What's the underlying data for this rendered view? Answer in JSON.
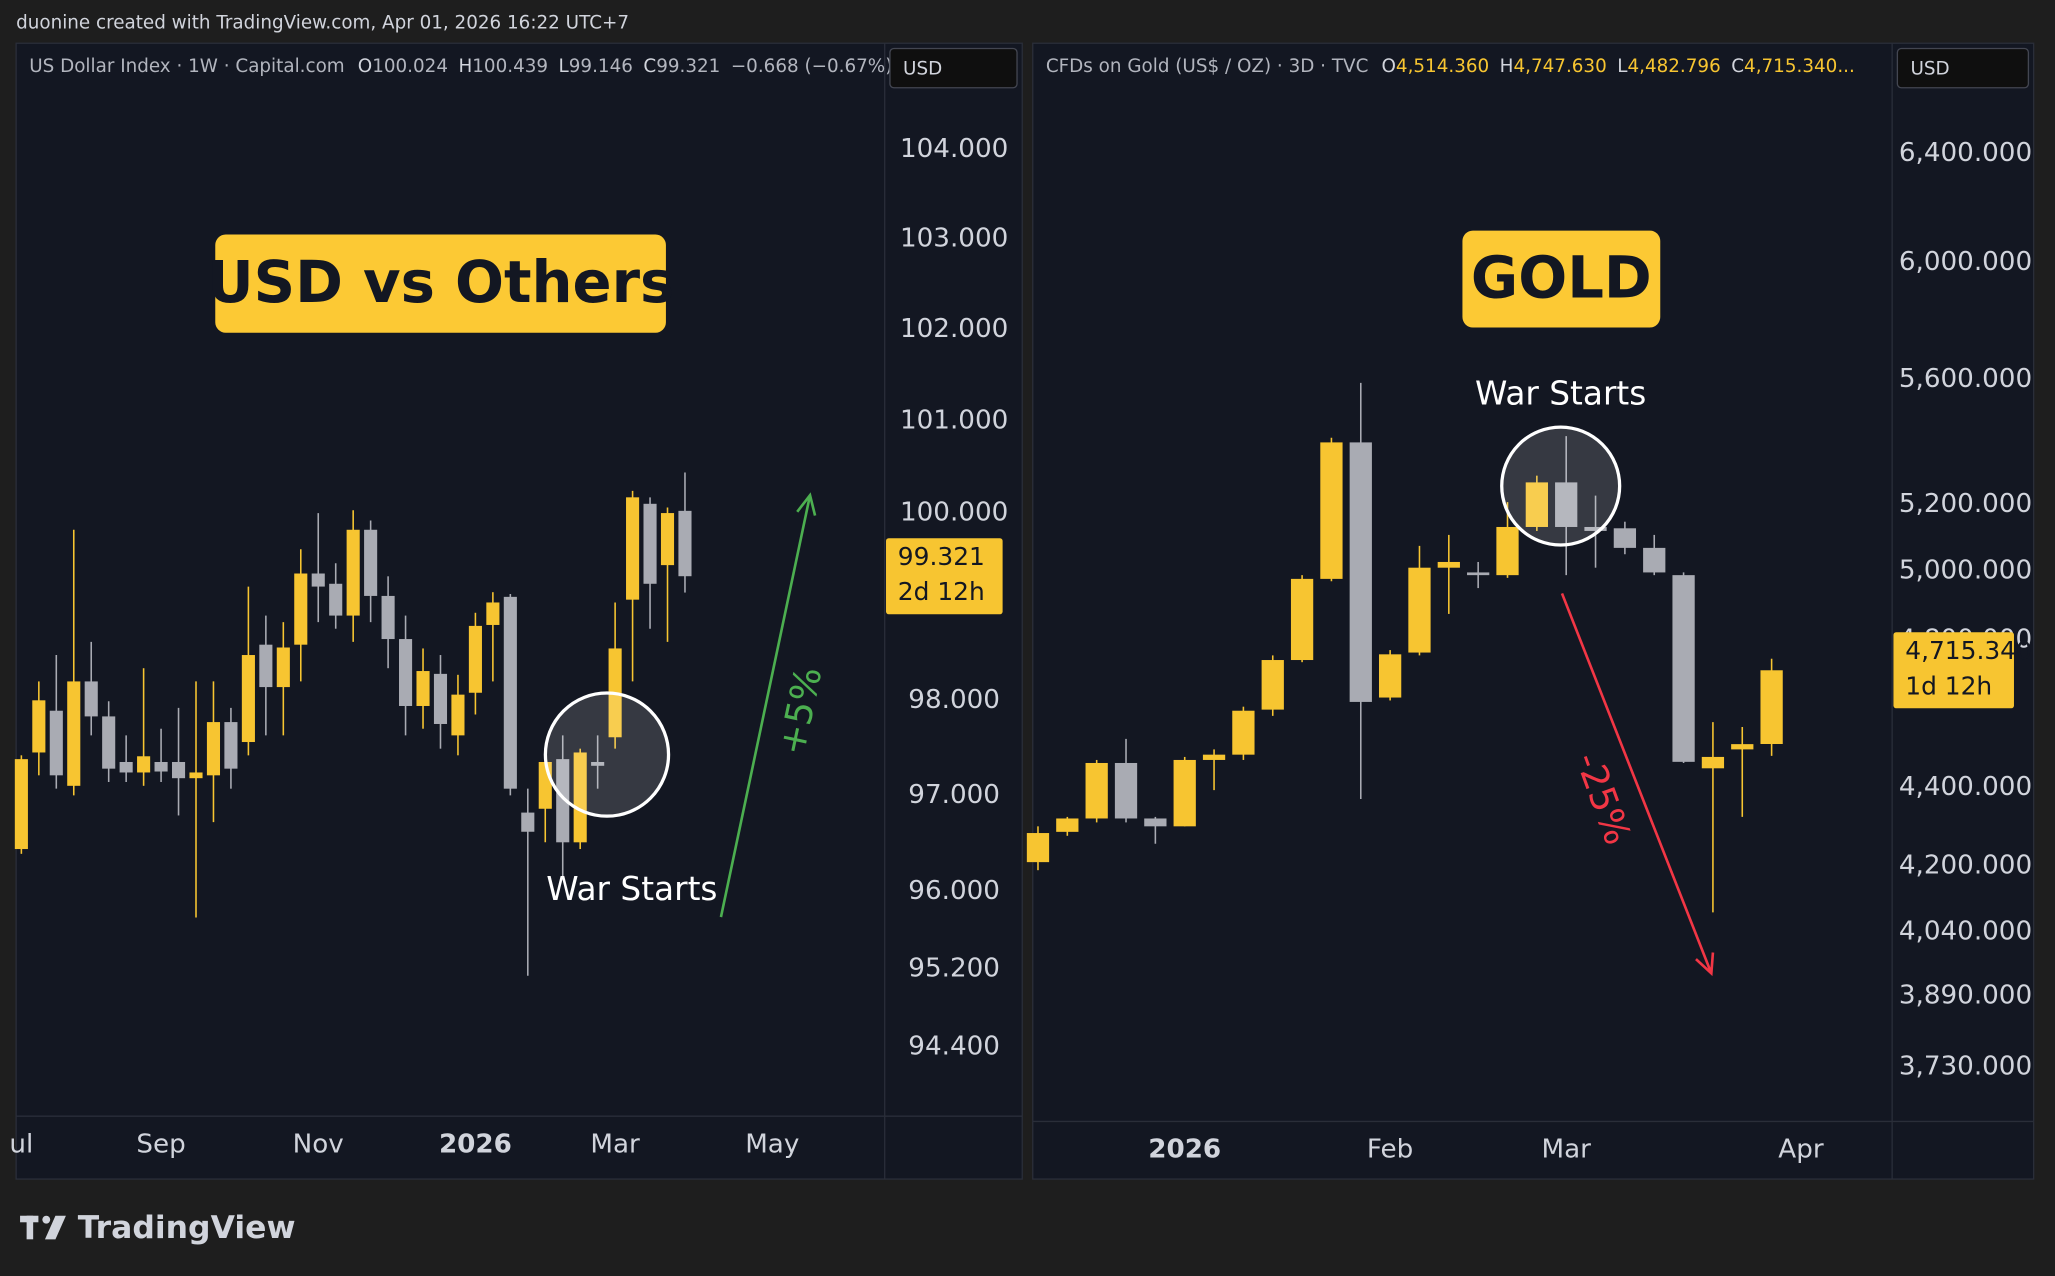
{
  "attribution": "duonine created with TradingView.com, Apr 01, 2026 16:22 UTC+7",
  "logo": "TradingView",
  "chart_data": [
    {
      "type": "candlestick",
      "symbol": "US Dollar Index · 1W · Capital.com",
      "ohlc": [
        {
          "key": "O",
          "value": "100.024"
        },
        {
          "key": "H",
          "value": "100.439"
        },
        {
          "key": "L",
          "value": "99.146"
        },
        {
          "key": "C",
          "value": "99.321"
        }
      ],
      "change": "−0.668 (−0.67%)",
      "ohlc_color": "#b2b5be",
      "currency": "USD",
      "title": "USD vs Others",
      "annotation": "War Starts",
      "move_label": "+5%",
      "move_color": "#4caf50",
      "last_label": "99.321",
      "countdown": "2d 12h",
      "log_scale": true,
      "up_color": "#f7c531",
      "down_color": "#a9abb3",
      "categories": [
        "ul",
        null,
        null,
        null,
        null,
        null,
        null,
        null,
        "Sep",
        null,
        null,
        null,
        null,
        null,
        null,
        null,
        null,
        "Nov",
        null,
        null,
        null,
        null,
        null,
        null,
        null,
        null,
        "2026",
        null,
        null,
        null,
        null,
        null,
        null,
        null,
        "Mar",
        null,
        null,
        null,
        null,
        null,
        null,
        null,
        null,
        "May",
        null,
        null,
        null,
        null,
        null,
        null
      ],
      "open": [
        96.44,
        97.45,
        97.89,
        97.1,
        98.2,
        97.83,
        97.35,
        97.24,
        97.35,
        97.35,
        97.18,
        97.21,
        97.77,
        97.56,
        98.59,
        98.14,
        98.59,
        99.35,
        99.24,
        98.9,
        99.82,
        99.11,
        98.65,
        97.94,
        98.28,
        97.63,
        98.08,
        98.8,
        99.1,
        96.82,
        96.86,
        97.38,
        96.51,
        97.35,
        97.61,
        99.07,
        100.1,
        99.44,
        100.024,
        null,
        null,
        null,
        null,
        null,
        null,
        null,
        null,
        null,
        null,
        null
      ],
      "high": [
        97.42,
        98.2,
        98.48,
        99.82,
        98.62,
        97.99,
        97.63,
        98.34,
        97.7,
        97.92,
        98.2,
        98.2,
        97.92,
        99.21,
        98.9,
        98.83,
        99.61,
        100.0,
        99.46,
        100.03,
        99.92,
        99.32,
        98.9,
        98.55,
        98.48,
        98.27,
        98.93,
        99.15,
        99.13,
        97.07,
        97.49,
        97.63,
        97.49,
        97.63,
        99.04,
        100.24,
        100.17,
        100.06,
        100.439,
        null,
        null,
        null,
        null,
        null,
        null,
        null,
        null,
        null,
        null,
        null
      ],
      "low": [
        96.39,
        97.21,
        97.07,
        97.0,
        97.63,
        97.14,
        97.14,
        97.1,
        97.14,
        96.79,
        95.73,
        96.72,
        97.07,
        97.42,
        97.63,
        97.63,
        98.2,
        98.83,
        98.76,
        98.62,
        98.83,
        98.34,
        97.63,
        97.7,
        97.49,
        97.42,
        97.85,
        98.2,
        97.0,
        95.13,
        96.51,
        96.16,
        96.44,
        97.07,
        97.49,
        98.2,
        98.76,
        98.62,
        99.146,
        null,
        null,
        null,
        null,
        null,
        null,
        null,
        null,
        null,
        null,
        null
      ],
      "close": [
        97.38,
        98.0,
        97.21,
        98.2,
        97.83,
        97.28,
        97.24,
        97.41,
        97.25,
        97.18,
        97.24,
        97.77,
        97.28,
        98.48,
        98.14,
        98.56,
        99.35,
        99.21,
        98.9,
        99.82,
        99.11,
        98.65,
        97.94,
        98.31,
        97.75,
        98.06,
        98.79,
        99.04,
        97.07,
        96.62,
        97.35,
        96.51,
        97.45,
        97.31,
        98.55,
        100.17,
        99.24,
        100.0,
        99.321,
        null,
        null,
        null,
        null,
        null,
        null,
        null,
        null,
        null,
        null,
        null
      ],
      "ylim": [
        93.7,
        105.2
      ],
      "yticks": [
        {
          "value": 104,
          "label": "104.000"
        },
        {
          "value": 103,
          "label": "103.000"
        },
        {
          "value": 102,
          "label": "102.000"
        },
        {
          "value": 101,
          "label": "101.000"
        },
        {
          "value": 100,
          "label": "100.000"
        },
        {
          "value": 98,
          "label": "98.000"
        },
        {
          "value": 97,
          "label": "97.000"
        },
        {
          "value": 96,
          "label": "96.000"
        },
        {
          "value": 95.2,
          "label": "95.200"
        },
        {
          "value": 94.4,
          "label": "94.400"
        }
      ]
    },
    {
      "type": "candlestick",
      "symbol": "CFDs on Gold (US$ / OZ) · 3D · TVC",
      "ohlc": [
        {
          "key": "O",
          "value": "4,514.360"
        },
        {
          "key": "H",
          "value": "4,747.630"
        },
        {
          "key": "L",
          "value": "4,482.796"
        },
        {
          "key": "C",
          "value": "4,715.340..."
        }
      ],
      "ohlc_color": "#f7c531",
      "currency": "USD",
      "title": "GOLD",
      "annotation": "War Starts",
      "move_label": "-25%",
      "move_color": "#f23645",
      "last_label": "4,715.340",
      "countdown": "1d 12h",
      "log_scale": true,
      "up_color": "#f7c531",
      "down_color": "#a9abb3",
      "categories": [
        null,
        null,
        null,
        null,
        null,
        "2026",
        null,
        null,
        null,
        null,
        null,
        null,
        "Feb",
        null,
        null,
        null,
        null,
        null,
        "Mar",
        null,
        null,
        null,
        null,
        null,
        null,
        null,
        "Apr",
        null,
        null
      ],
      "open": [
        4210,
        4286,
        4320,
        4464,
        4320,
        4300,
        4472,
        4486,
        4607,
        4744,
        4977,
        5395,
        4640,
        4765,
        5010,
        4996,
        4988,
        5132,
        5269,
        5132,
        5128,
        5069,
        4988,
        4450,
        4500,
        4514.36,
        null,
        null,
        null
      ],
      "high": [
        4300,
        4324,
        4472,
        4528,
        4324,
        4480,
        4500,
        4615,
        4757,
        4988,
        5410,
        5588,
        4772,
        5075,
        5108,
        5027,
        5208,
        5290,
        5415,
        5228,
        5148,
        5108,
        4996,
        4573,
        4560,
        4747.63,
        null,
        null,
        null
      ],
      "low": [
        4190,
        4276,
        4310,
        4310,
        4256,
        4300,
        4393,
        4472,
        4590,
        4738,
        4970,
        4370,
        4632,
        4757,
        4875,
        4950,
        4980,
        5120,
        4988,
        5010,
        5050,
        4988,
        4464,
        4087,
        4324,
        4482.796,
        null,
        null,
        null
      ],
      "close": [
        4283,
        4320,
        4464,
        4320,
        4300,
        4472,
        4486,
        4604,
        4744,
        4977,
        5395,
        4628,
        4760,
        5010,
        5027,
        4988,
        5132,
        5269,
        5132,
        5120,
        5069,
        4996,
        4467,
        4480,
        4514,
        4715.34,
        null,
        null,
        null
      ],
      "ylim": [
        3612,
        6830
      ],
      "yticks": [
        {
          "value": 6400,
          "label": "6,400.000"
        },
        {
          "value": 6000,
          "label": "6,000.000"
        },
        {
          "value": 5600,
          "label": "5,600.000"
        },
        {
          "value": 5200,
          "label": "5,200.000"
        },
        {
          "value": 5000,
          "label": "5,000.000"
        },
        {
          "value": 4800,
          "label": "4,800.000"
        },
        {
          "value": 4400,
          "label": "4,400.000"
        },
        {
          "value": 4200,
          "label": "4,200.000"
        },
        {
          "value": 4040,
          "label": "4,040.000"
        },
        {
          "value": 3890,
          "label": "3,890.000"
        },
        {
          "value": 3730,
          "label": "3,730.000"
        }
      ]
    }
  ]
}
